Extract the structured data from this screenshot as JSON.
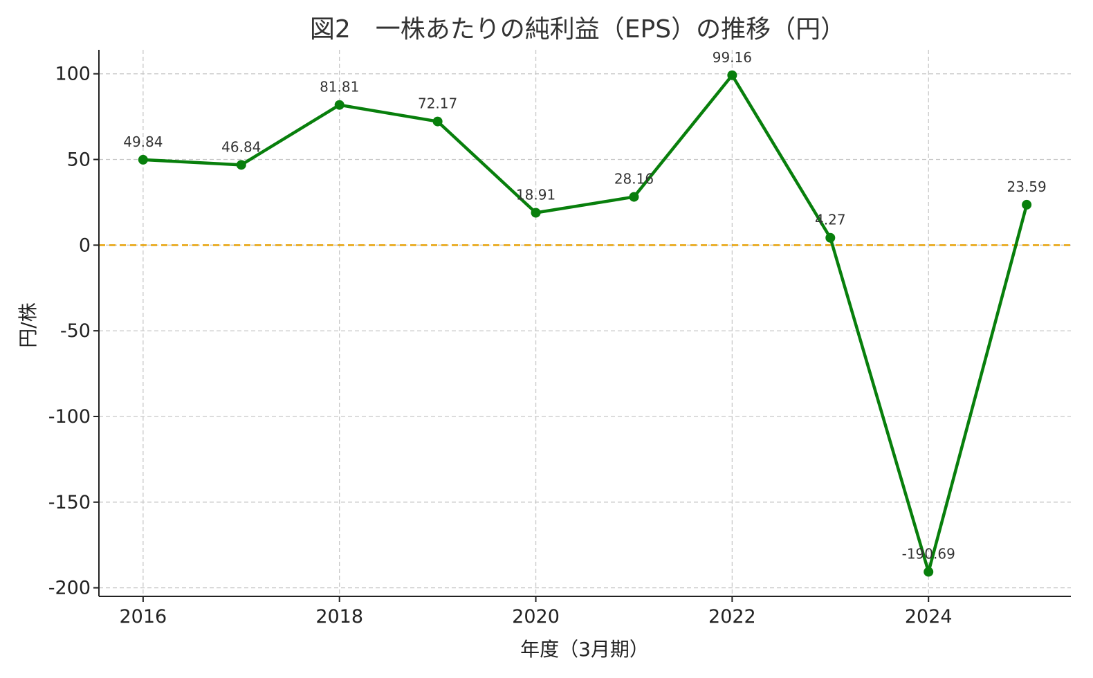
{
  "chart_data": {
    "type": "line",
    "title": "図2　一株あたりの純利益（EPS）の推移（円）",
    "xlabel": "年度（3月期）",
    "ylabel": "円/株",
    "x": [
      2016,
      2017,
      2018,
      2019,
      2020,
      2021,
      2022,
      2023,
      2024,
      2025
    ],
    "x_ticks": [
      "2016",
      "2018",
      "2020",
      "2022",
      "2024"
    ],
    "y_ticks": [
      "100",
      "50",
      "0",
      "-50",
      "-100",
      "-150",
      "-200"
    ],
    "xlim": [
      2015.55,
      2025.45
    ],
    "ylim": [
      -205,
      114
    ],
    "series": [
      {
        "values": [
          49.84,
          46.84,
          81.81,
          72.17,
          18.91,
          28.16,
          99.16,
          4.27,
          -190.69,
          23.59
        ],
        "labels": [
          "49.84",
          "46.84",
          "81.81",
          "72.17",
          "18.91",
          "28.16",
          "99.16",
          "4.27",
          "-190.69",
          "23.59"
        ],
        "color": "#087f0c"
      }
    ],
    "reference_line": {
      "y": 0,
      "color": "#e69f00",
      "style": "dashed"
    },
    "grid": true
  }
}
